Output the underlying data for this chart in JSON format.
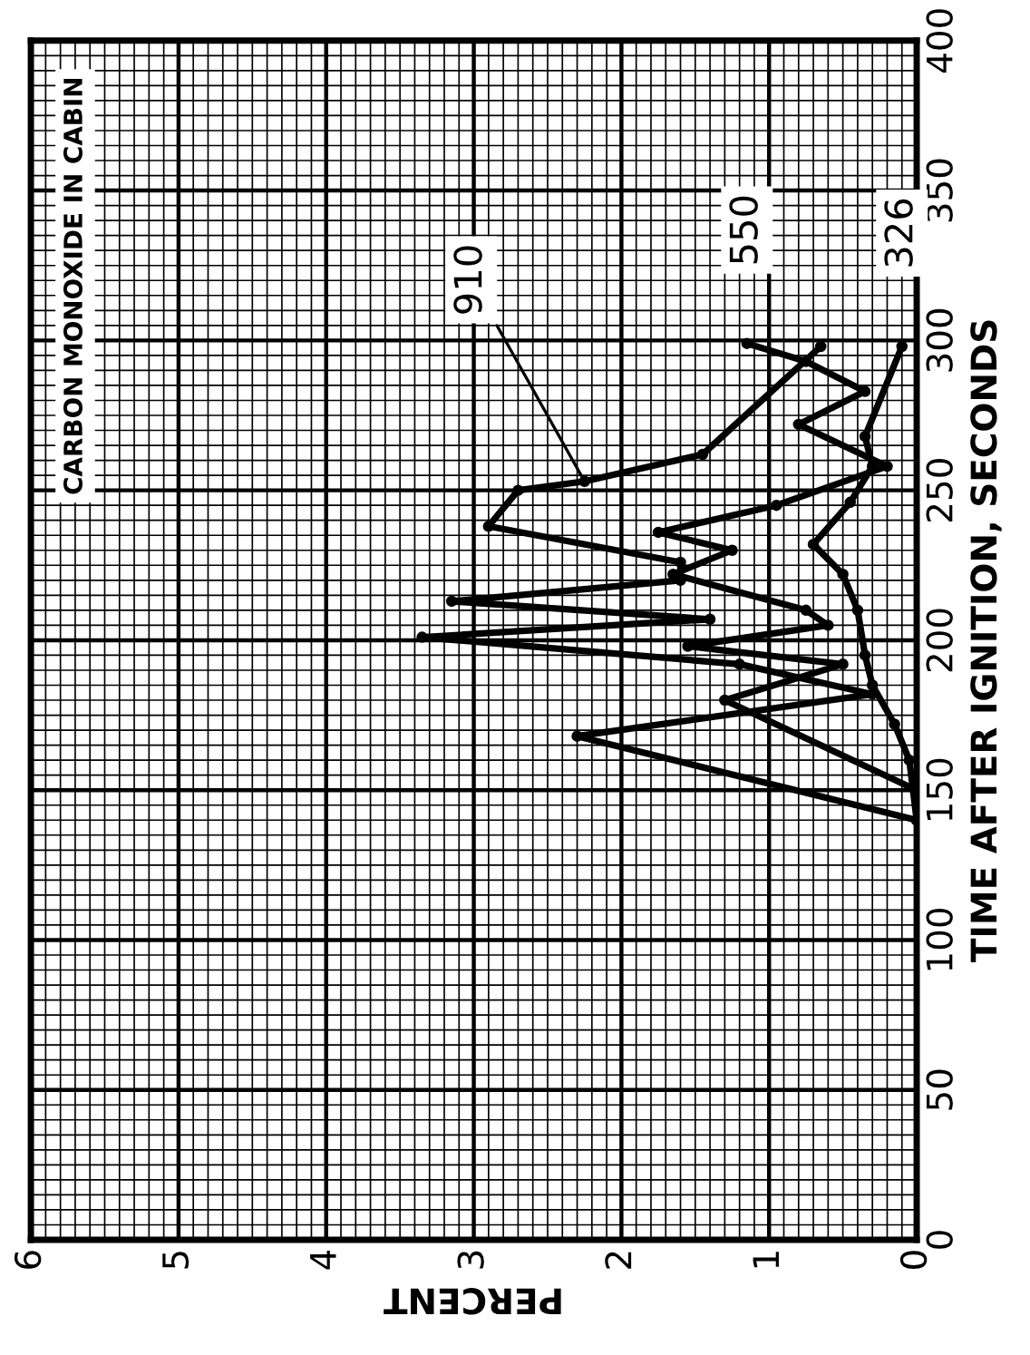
{
  "chart_data": {
    "type": "line",
    "title": "CARBON MONOXIDE IN CABIN",
    "xlabel": "PERCENT",
    "ylabel": "TIME AFTER IGNITION, SECONDS",
    "xlim": [
      6,
      0
    ],
    "xticks": [
      6,
      5,
      4,
      3,
      2,
      1,
      0
    ],
    "ylim": [
      0,
      400
    ],
    "yticks": [
      0,
      50,
      100,
      150,
      200,
      250,
      300,
      350,
      400
    ],
    "grid": true,
    "marker": "circle",
    "line_style": "solid",
    "series": [
      {
        "color": "#000000",
        "values": [
          140,
          168,
          182,
          192,
          201,
          207,
          213,
          220,
          226,
          238,
          250,
          253,
          262,
          298
        ],
        "x": [
          0,
          2.3,
          0.3,
          1.2,
          3.35,
          1.4,
          3.15,
          1.6,
          1.6,
          2.9,
          2.7,
          2.25,
          1.45,
          0.65
        ]
      },
      {
        "color": "#000000",
        "values": [
          150,
          180,
          192,
          198,
          205,
          210,
          222,
          230,
          236,
          245,
          258,
          272,
          283,
          293,
          299
        ],
        "x": [
          0,
          1.3,
          0.5,
          1.55,
          0.6,
          0.75,
          1.65,
          1.25,
          1.75,
          0.95,
          0.2,
          0.8,
          0.35,
          0.75,
          1.15
        ]
      },
      {
        "color": "#000000",
        "values": [
          140,
          160,
          172,
          185,
          195,
          210,
          222,
          232,
          246,
          258,
          268,
          298
        ],
        "x": [
          0,
          0.05,
          0.15,
          0.3,
          0.35,
          0.4,
          0.5,
          0.7,
          0.45,
          0.3,
          0.35,
          0.1
        ]
      }
    ],
    "annotations": [
      {
        "text": "910",
        "x": 2.25,
        "y": 253
      },
      {
        "text": "550",
        "x": 1.15,
        "y": 299
      },
      {
        "text": "326",
        "x": 0.1,
        "y": 298
      }
    ]
  }
}
